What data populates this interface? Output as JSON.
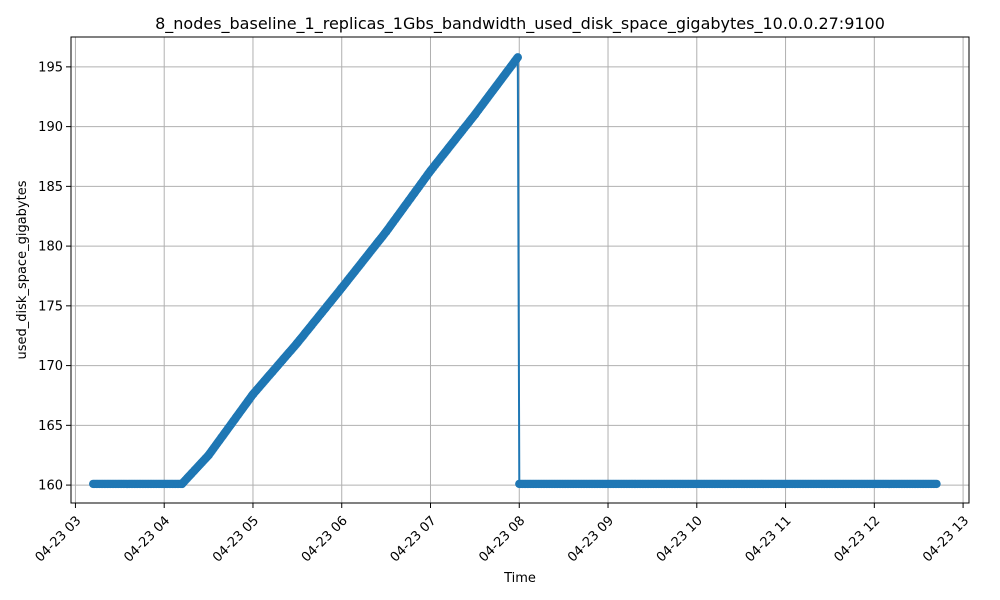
{
  "chart_data": {
    "type": "line",
    "title": "8_nodes_baseline_1_replicas_1Gbs_bandwidth_used_disk_space_gigabytes_10.0.0.27:9100",
    "xlabel": "Time",
    "ylabel": "used_disk_space_gigabytes",
    "grid": true,
    "marker": "circle",
    "color": "#1f77b4",
    "xlim": [
      "04-23 02:57",
      "04-23 13:04"
    ],
    "ylim": [
      158.5,
      197.5
    ],
    "x_ticks": [
      "04-23 03",
      "04-23 04",
      "04-23 05",
      "04-23 06",
      "04-23 07",
      "04-23 08",
      "04-23 09",
      "04-23 10",
      "04-23 11",
      "04-23 12",
      "04-23 13"
    ],
    "y_ticks": [
      160,
      165,
      170,
      175,
      180,
      185,
      190,
      195
    ],
    "series": [
      {
        "x": [
          "04-23 03:12",
          "04-23 04:12",
          "04-23 04:30",
          "04-23 05:00",
          "04-23 05:30",
          "04-23 06:00",
          "04-23 06:30",
          "04-23 07:00",
          "04-23 07:30",
          "04-23 07:59",
          "04-23 08:00",
          "04-23 12:42"
        ],
        "values": [
          160.1,
          160.1,
          162.5,
          167.6,
          171.9,
          176.5,
          181.2,
          186.3,
          191.0,
          195.8,
          160.1,
          160.1
        ]
      }
    ]
  }
}
